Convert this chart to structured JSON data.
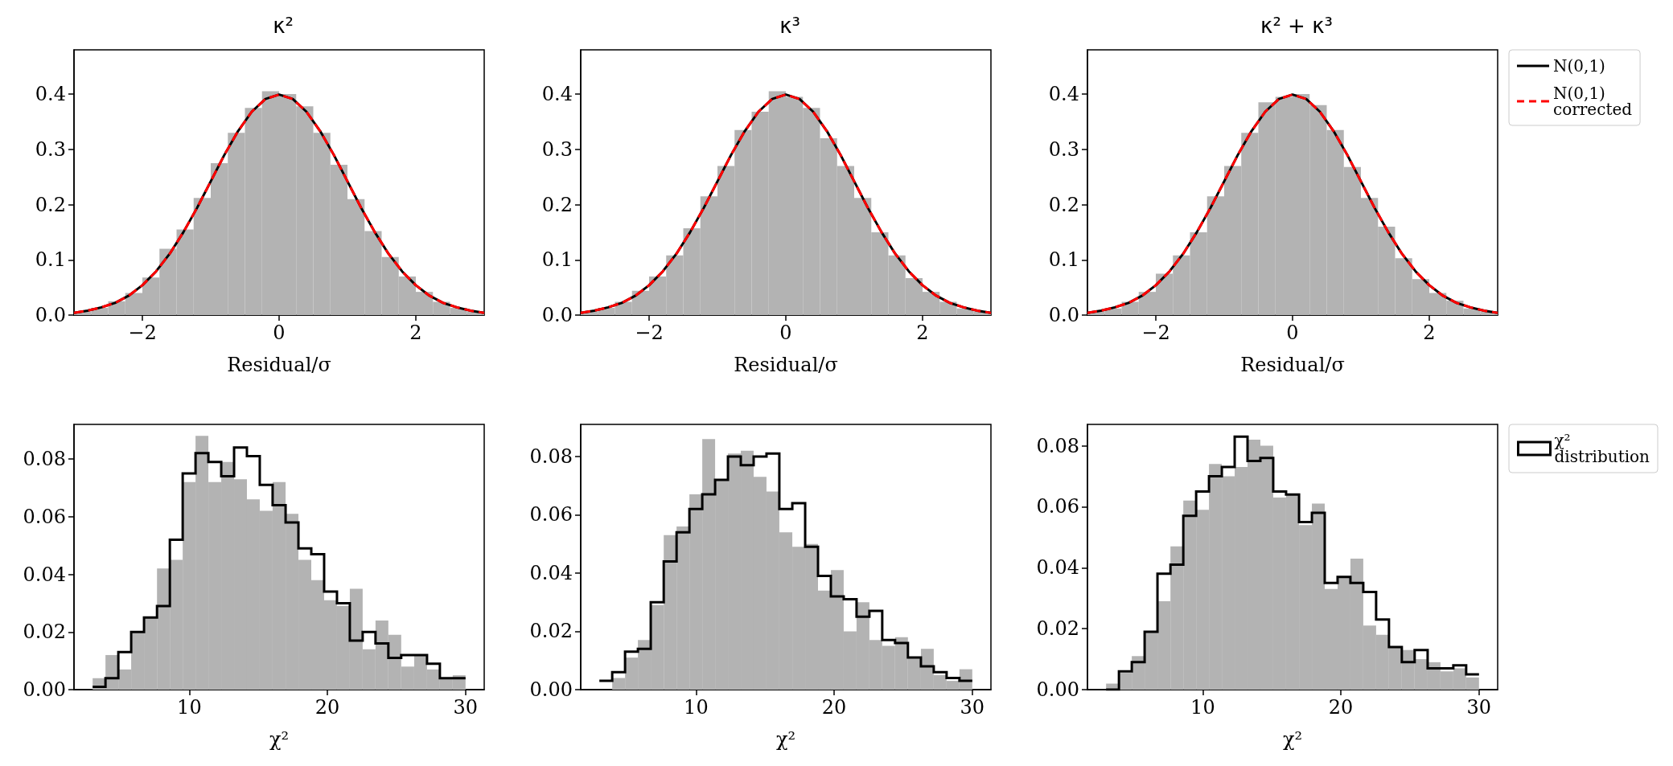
{
  "chart_data": [
    {
      "type": "histogram",
      "title": "κ²",
      "xlabel": "Residual/σ",
      "xlim": [
        -3,
        3
      ],
      "ylim": [
        0,
        0.48
      ],
      "xticks": [
        -2,
        0,
        2
      ],
      "yticks": [
        {
          "value": 0,
          "label": "0.0"
        },
        0.1,
        0.2,
        0.3,
        0.4
      ],
      "grid": false,
      "legend": false,
      "bins": [
        -3,
        -2.75,
        -2.5,
        -2.25,
        -2,
        -1.75,
        -1.5,
        -1.25,
        -1,
        -0.75,
        -0.5,
        -0.25,
        0,
        0.25,
        0.5,
        0.75,
        1,
        1.25,
        1.5,
        1.75,
        2,
        2.25,
        2.5,
        2.75,
        3
      ],
      "series": [
        {
          "color": "#b3b3b3",
          "values": [
            0.006,
            0.013,
            0.025,
            0.04,
            0.068,
            0.12,
            0.155,
            0.212,
            0.275,
            0.33,
            0.375,
            0.405,
            0.4,
            0.378,
            0.33,
            0.272,
            0.21,
            0.152,
            0.105,
            0.07,
            0.042,
            0.024,
            0.013,
            0.006
          ]
        },
        {
          "type": "line",
          "color": "#000000",
          "x": [
            -3,
            -2.8,
            -2.6,
            -2.4,
            -2.2,
            -2,
            -1.8,
            -1.6,
            -1.4,
            -1.2,
            -1,
            -0.8,
            -0.6,
            -0.4,
            -0.2,
            0,
            0.2,
            0.4,
            0.6,
            0.8,
            1,
            1.2,
            1.4,
            1.6,
            1.8,
            2,
            2.2,
            2.4,
            2.6,
            2.8,
            3
          ],
          "values": [
            0.004,
            0.008,
            0.014,
            0.022,
            0.035,
            0.054,
            0.079,
            0.111,
            0.15,
            0.194,
            0.242,
            0.29,
            0.333,
            0.368,
            0.391,
            0.399,
            0.391,
            0.368,
            0.333,
            0.29,
            0.242,
            0.194,
            0.15,
            0.111,
            0.079,
            0.054,
            0.035,
            0.022,
            0.014,
            0.008,
            0.004
          ]
        },
        {
          "type": "line",
          "color": "#ff0000",
          "line_style": "dashed",
          "x": [
            -3,
            -2.8,
            -2.6,
            -2.4,
            -2.2,
            -2,
            -1.8,
            -1.6,
            -1.4,
            -1.2,
            -1,
            -0.8,
            -0.6,
            -0.4,
            -0.2,
            0,
            0.2,
            0.4,
            0.6,
            0.8,
            1,
            1.2,
            1.4,
            1.6,
            1.8,
            2,
            2.2,
            2.4,
            2.6,
            2.8,
            3
          ],
          "values": [
            0.004,
            0.008,
            0.014,
            0.022,
            0.035,
            0.054,
            0.079,
            0.111,
            0.15,
            0.194,
            0.242,
            0.29,
            0.333,
            0.368,
            0.391,
            0.399,
            0.391,
            0.368,
            0.333,
            0.29,
            0.242,
            0.194,
            0.15,
            0.111,
            0.079,
            0.054,
            0.035,
            0.022,
            0.014,
            0.008,
            0.004
          ]
        }
      ]
    },
    {
      "type": "histogram",
      "title": "κ³",
      "xlabel": "Residual/σ",
      "xlim": [
        -3,
        3
      ],
      "ylim": [
        0,
        0.48
      ],
      "xticks": [
        -2,
        0,
        2
      ],
      "yticks": [
        {
          "value": 0,
          "label": "0.0"
        },
        0.1,
        0.2,
        0.3,
        0.4
      ],
      "grid": false,
      "legend": false,
      "bins": [
        -3,
        -2.75,
        -2.5,
        -2.25,
        -2,
        -1.75,
        -1.5,
        -1.25,
        -1,
        -0.75,
        -0.5,
        -0.25,
        0,
        0.25,
        0.5,
        0.75,
        1,
        1.25,
        1.5,
        1.75,
        2,
        2.25,
        2.5,
        2.75,
        3
      ],
      "series": [
        {
          "color": "#b3b3b3",
          "values": [
            0.006,
            0.013,
            0.024,
            0.044,
            0.07,
            0.108,
            0.157,
            0.215,
            0.27,
            0.335,
            0.368,
            0.405,
            0.395,
            0.375,
            0.32,
            0.27,
            0.212,
            0.15,
            0.108,
            0.067,
            0.042,
            0.024,
            0.012,
            0.006
          ]
        },
        {
          "type": "line",
          "color": "#000000",
          "x": [
            -3,
            -2.8,
            -2.6,
            -2.4,
            -2.2,
            -2,
            -1.8,
            -1.6,
            -1.4,
            -1.2,
            -1,
            -0.8,
            -0.6,
            -0.4,
            -0.2,
            0,
            0.2,
            0.4,
            0.6,
            0.8,
            1,
            1.2,
            1.4,
            1.6,
            1.8,
            2,
            2.2,
            2.4,
            2.6,
            2.8,
            3
          ],
          "values": [
            0.004,
            0.008,
            0.014,
            0.022,
            0.035,
            0.054,
            0.079,
            0.111,
            0.15,
            0.194,
            0.242,
            0.29,
            0.333,
            0.368,
            0.391,
            0.399,
            0.391,
            0.368,
            0.333,
            0.29,
            0.242,
            0.194,
            0.15,
            0.111,
            0.079,
            0.054,
            0.035,
            0.022,
            0.014,
            0.008,
            0.004
          ]
        },
        {
          "type": "line",
          "color": "#ff0000",
          "line_style": "dashed",
          "x": [
            -3,
            -2.8,
            -2.6,
            -2.4,
            -2.2,
            -2,
            -1.8,
            -1.6,
            -1.4,
            -1.2,
            -1,
            -0.8,
            -0.6,
            -0.4,
            -0.2,
            0,
            0.2,
            0.4,
            0.6,
            0.8,
            1,
            1.2,
            1.4,
            1.6,
            1.8,
            2,
            2.2,
            2.4,
            2.6,
            2.8,
            3
          ],
          "values": [
            0.004,
            0.008,
            0.014,
            0.022,
            0.035,
            0.054,
            0.079,
            0.111,
            0.15,
            0.194,
            0.242,
            0.29,
            0.333,
            0.368,
            0.391,
            0.399,
            0.391,
            0.368,
            0.333,
            0.29,
            0.242,
            0.194,
            0.15,
            0.111,
            0.079,
            0.054,
            0.035,
            0.022,
            0.014,
            0.008,
            0.004
          ]
        }
      ]
    },
    {
      "type": "histogram",
      "title": "κ² + κ³",
      "xlabel": "Residual/σ",
      "xlim": [
        -3,
        3
      ],
      "ylim": [
        0,
        0.48
      ],
      "xticks": [
        -2,
        0,
        2
      ],
      "yticks": [
        {
          "value": 0,
          "label": "0.0"
        },
        0.1,
        0.2,
        0.3,
        0.4
      ],
      "grid": false,
      "legend": "top right",
      "bins": [
        -3,
        -2.75,
        -2.5,
        -2.25,
        -2,
        -1.75,
        -1.5,
        -1.25,
        -1,
        -0.75,
        -0.5,
        -0.25,
        0,
        0.25,
        0.5,
        0.75,
        1,
        1.25,
        1.5,
        1.75,
        2,
        2.25,
        2.5,
        2.75,
        3
      ],
      "series": [
        {
          "color": "#b3b3b3",
          "values": [
            0.006,
            0.012,
            0.024,
            0.042,
            0.075,
            0.108,
            0.15,
            0.215,
            0.27,
            0.33,
            0.385,
            0.395,
            0.4,
            0.38,
            0.335,
            0.268,
            0.212,
            0.16,
            0.103,
            0.065,
            0.04,
            0.026,
            0.012,
            0.006
          ]
        },
        {
          "type": "line",
          "name": "N(0,1)",
          "color": "#000000",
          "x": [
            -3,
            -2.8,
            -2.6,
            -2.4,
            -2.2,
            -2,
            -1.8,
            -1.6,
            -1.4,
            -1.2,
            -1,
            -0.8,
            -0.6,
            -0.4,
            -0.2,
            0,
            0.2,
            0.4,
            0.6,
            0.8,
            1,
            1.2,
            1.4,
            1.6,
            1.8,
            2,
            2.2,
            2.4,
            2.6,
            2.8,
            3
          ],
          "values": [
            0.004,
            0.008,
            0.014,
            0.022,
            0.035,
            0.054,
            0.079,
            0.111,
            0.15,
            0.194,
            0.242,
            0.29,
            0.333,
            0.368,
            0.391,
            0.399,
            0.391,
            0.368,
            0.333,
            0.29,
            0.242,
            0.194,
            0.15,
            0.111,
            0.079,
            0.054,
            0.035,
            0.022,
            0.014,
            0.008,
            0.004
          ]
        },
        {
          "type": "line",
          "name": "N(0,1) corrected",
          "color": "#ff0000",
          "line_style": "dashed",
          "x": [
            -3,
            -2.8,
            -2.6,
            -2.4,
            -2.2,
            -2,
            -1.8,
            -1.6,
            -1.4,
            -1.2,
            -1,
            -0.8,
            -0.6,
            -0.4,
            -0.2,
            0,
            0.2,
            0.4,
            0.6,
            0.8,
            1,
            1.2,
            1.4,
            1.6,
            1.8,
            2,
            2.2,
            2.4,
            2.6,
            2.8,
            3
          ],
          "values": [
            0.004,
            0.008,
            0.014,
            0.022,
            0.035,
            0.054,
            0.079,
            0.111,
            0.15,
            0.194,
            0.242,
            0.29,
            0.333,
            0.368,
            0.391,
            0.399,
            0.391,
            0.368,
            0.333,
            0.29,
            0.242,
            0.194,
            0.15,
            0.111,
            0.079,
            0.054,
            0.035,
            0.022,
            0.014,
            0.008,
            0.004
          ]
        }
      ]
    },
    {
      "type": "histogram",
      "xlabel": "χ²",
      "xlim": [
        1.65,
        31.35
      ],
      "ylim": [
        0,
        0.092
      ],
      "xticks": [
        10,
        20,
        30
      ],
      "yticks": [
        {
          "value": 0,
          "label": "0.00"
        },
        {
          "value": 0.02,
          "label": "0.02"
        },
        {
          "value": 0.04,
          "label": "0.04"
        },
        {
          "value": 0.06,
          "label": "0.06"
        },
        {
          "value": 0.08,
          "label": "0.08"
        }
      ],
      "grid": false,
      "legend": false,
      "bins": [
        3,
        3.93,
        4.86,
        5.79,
        6.72,
        7.66,
        8.59,
        9.52,
        10.45,
        11.38,
        12.31,
        13.24,
        14.17,
        15.1,
        16.03,
        16.97,
        17.9,
        18.83,
        19.76,
        20.69,
        21.62,
        22.55,
        23.48,
        24.41,
        25.34,
        26.28,
        27.21,
        28.14,
        29.07,
        30
      ],
      "series": [
        {
          "color": "#b3b3b3",
          "values": [
            0.004,
            0.012,
            0.007,
            0.02,
            0.025,
            0.042,
            0.045,
            0.072,
            0.088,
            0.072,
            0.079,
            0.073,
            0.066,
            0.062,
            0.072,
            0.061,
            0.045,
            0.038,
            0.031,
            0.029,
            0.035,
            0.014,
            0.024,
            0.019,
            0.008,
            0.012,
            0.007,
            0.004,
            0.005
          ]
        },
        {
          "type": "step",
          "color": "#000000",
          "x": [
            3,
            3.93,
            4.86,
            5.79,
            6.72,
            7.66,
            8.59,
            9.52,
            10.45,
            11.38,
            12.31,
            13.24,
            14.17,
            15.1,
            16.03,
            16.97,
            17.9,
            18.83,
            19.76,
            20.69,
            21.62,
            22.55,
            23.48,
            24.41,
            25.34,
            26.28,
            27.21,
            28.14,
            29.07,
            30
          ],
          "values": [
            0.001,
            0.004,
            0.013,
            0.02,
            0.025,
            0.029,
            0.052,
            0.075,
            0.082,
            0.079,
            0.074,
            0.084,
            0.081,
            0.071,
            0.064,
            0.058,
            0.049,
            0.047,
            0.034,
            0.03,
            0.017,
            0.02,
            0.016,
            0.011,
            0.012,
            0.012,
            0.009,
            0.004,
            0.004,
            0.004
          ]
        }
      ]
    },
    {
      "type": "histogram",
      "xlabel": "χ²",
      "xlim": [
        1.65,
        31.35
      ],
      "ylim": [
        0,
        0.091
      ],
      "xticks": [
        10,
        20,
        30
      ],
      "yticks": [
        {
          "value": 0,
          "label": "0.00"
        },
        {
          "value": 0.02,
          "label": "0.02"
        },
        {
          "value": 0.04,
          "label": "0.04"
        },
        {
          "value": 0.06,
          "label": "0.06"
        },
        {
          "value": 0.08,
          "label": "0.08"
        }
      ],
      "grid": false,
      "legend": false,
      "bins": [
        3,
        3.93,
        4.86,
        5.79,
        6.72,
        7.66,
        8.59,
        9.52,
        10.45,
        11.38,
        12.31,
        13.24,
        14.17,
        15.1,
        16.03,
        16.97,
        17.9,
        18.83,
        19.76,
        20.69,
        21.62,
        22.55,
        23.48,
        24.41,
        25.34,
        26.28,
        27.21,
        28.14,
        29.07,
        30
      ],
      "series": [
        {
          "color": "#b3b3b3",
          "values": [
            0,
            0.004,
            0.011,
            0.017,
            0.029,
            0.053,
            0.056,
            0.067,
            0.086,
            0.072,
            0.081,
            0.082,
            0.073,
            0.068,
            0.054,
            0.049,
            0.05,
            0.034,
            0.041,
            0.02,
            0.03,
            0.017,
            0.015,
            0.018,
            0.011,
            0.014,
            0.005,
            0.003,
            0.007
          ]
        },
        {
          "type": "step",
          "color": "#000000",
          "x": [
            3,
            3.93,
            4.86,
            5.79,
            6.72,
            7.66,
            8.59,
            9.52,
            10.45,
            11.38,
            12.31,
            13.24,
            14.17,
            15.1,
            16.03,
            16.97,
            17.9,
            18.83,
            19.76,
            20.69,
            21.62,
            22.55,
            23.48,
            24.41,
            25.34,
            26.28,
            27.21,
            28.14,
            29.07,
            30
          ],
          "values": [
            0.003,
            0.006,
            0.013,
            0.014,
            0.03,
            0.044,
            0.054,
            0.062,
            0.067,
            0.072,
            0.08,
            0.077,
            0.08,
            0.081,
            0.062,
            0.064,
            0.049,
            0.039,
            0.032,
            0.031,
            0.025,
            0.027,
            0.017,
            0.016,
            0.011,
            0.008,
            0.006,
            0.004,
            0.003,
            0.003
          ]
        }
      ]
    },
    {
      "type": "histogram",
      "xlabel": "χ²",
      "xlim": [
        1.65,
        31.35
      ],
      "ylim": [
        0,
        0.087
      ],
      "xticks": [
        10,
        20,
        30
      ],
      "yticks": [
        {
          "value": 0,
          "label": "0.00"
        },
        {
          "value": 0.02,
          "label": "0.02"
        },
        {
          "value": 0.04,
          "label": "0.04"
        },
        {
          "value": 0.06,
          "label": "0.06"
        },
        {
          "value": 0.08,
          "label": "0.08"
        }
      ],
      "grid": false,
      "legend": "top right",
      "bins": [
        3,
        3.93,
        4.86,
        5.79,
        6.72,
        7.66,
        8.59,
        9.52,
        10.45,
        11.38,
        12.31,
        13.24,
        14.17,
        15.1,
        16.03,
        16.97,
        17.9,
        18.83,
        19.76,
        20.69,
        21.62,
        22.55,
        23.48,
        24.41,
        25.34,
        26.28,
        27.21,
        28.14,
        29.07,
        30
      ],
      "series": [
        {
          "color": "#b3b3b3",
          "values": [
            0.002,
            0.0055,
            0.011,
            0.019,
            0.029,
            0.047,
            0.062,
            0.059,
            0.074,
            0.07,
            0.073,
            0.082,
            0.08,
            0.063,
            0.064,
            0.054,
            0.061,
            0.033,
            0.037,
            0.043,
            0.021,
            0.018,
            0.014,
            0.013,
            0.01,
            0.009,
            0.006,
            0.007,
            0.004
          ]
        },
        {
          "type": "step",
          "name": "χ² distribution",
          "color": "#000000",
          "x": [
            3,
            3.93,
            4.86,
            5.79,
            6.72,
            7.66,
            8.59,
            9.52,
            10.45,
            11.38,
            12.31,
            13.24,
            14.17,
            15.1,
            16.03,
            16.97,
            17.9,
            18.83,
            19.76,
            20.69,
            21.62,
            22.55,
            23.48,
            24.41,
            25.34,
            26.28,
            27.21,
            28.14,
            29.07,
            30
          ],
          "values": [
            0,
            0.006,
            0.009,
            0.019,
            0.038,
            0.041,
            0.057,
            0.065,
            0.07,
            0.073,
            0.083,
            0.075,
            0.076,
            0.065,
            0.064,
            0.055,
            0.058,
            0.035,
            0.037,
            0.035,
            0.032,
            0.023,
            0.014,
            0.009,
            0.013,
            0.007,
            0.007,
            0.008,
            0.005,
            0.005
          ]
        }
      ]
    }
  ]
}
